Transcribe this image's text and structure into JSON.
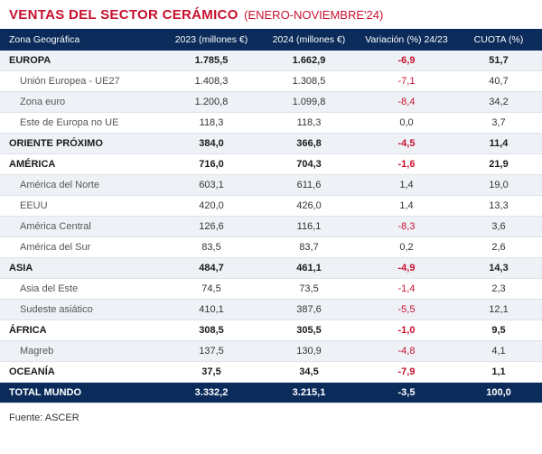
{
  "colors": {
    "title": "#c8102e",
    "header_row_bg": "#0b2b5a",
    "header_row_text": "#ffffff",
    "alt_row_bg": "#eef2f7",
    "row_bg": "#ffffff",
    "negative": "#c8102e",
    "total_row_bg": "#0b2b5a",
    "border": "#dde3ea"
  },
  "title": {
    "main": "VENTAS DEL SECTOR CERÁMICO",
    "sub": "(ENERO-NOVIEMBRE'24)"
  },
  "columns": {
    "geo": "Zona Geográfica",
    "y2023": "2023 (millones €)",
    "y2024": "2024 (millones €)",
    "var": "Variación (%) 24/23",
    "cuota": "CUOTA (%)"
  },
  "rows": [
    {
      "type": "region",
      "label": "EUROPA",
      "y2023": "1.785,5",
      "y2024": "1.662,9",
      "var": "-6,9",
      "var_neg": true,
      "cuota": "51,7"
    },
    {
      "type": "sub",
      "label": "Unión Europea - UE27",
      "y2023": "1.408,3",
      "y2024": "1.308,5",
      "var": "-7,1",
      "var_neg": true,
      "cuota": "40,7"
    },
    {
      "type": "sub",
      "label": "Zona euro",
      "y2023": "1.200,8",
      "y2024": "1.099,8",
      "var": "-8,4",
      "var_neg": true,
      "cuota": "34,2"
    },
    {
      "type": "sub",
      "label": "Este de Europa no UE",
      "y2023": "118,3",
      "y2024": "118,3",
      "var": "0,0",
      "var_neg": false,
      "cuota": "3,7"
    },
    {
      "type": "region",
      "label": "ORIENTE PRÓXIMO",
      "y2023": "384,0",
      "y2024": "366,8",
      "var": "-4,5",
      "var_neg": true,
      "cuota": "11,4"
    },
    {
      "type": "region",
      "label": "AMÉRICA",
      "y2023": "716,0",
      "y2024": "704,3",
      "var": "-1,6",
      "var_neg": true,
      "cuota": "21,9"
    },
    {
      "type": "sub",
      "label": "América del Norte",
      "y2023": "603,1",
      "y2024": "611,6",
      "var": "1,4",
      "var_neg": false,
      "cuota": "19,0"
    },
    {
      "type": "sub",
      "label": "EEUU",
      "y2023": "420,0",
      "y2024": "426,0",
      "var": "1,4",
      "var_neg": false,
      "cuota": "13,3"
    },
    {
      "type": "sub",
      "label": "América Central",
      "y2023": "126,6",
      "y2024": "116,1",
      "var": "-8,3",
      "var_neg": true,
      "cuota": "3,6"
    },
    {
      "type": "sub",
      "label": "América del Sur",
      "y2023": "83,5",
      "y2024": "83,7",
      "var": "0,2",
      "var_neg": false,
      "cuota": "2,6"
    },
    {
      "type": "region",
      "label": "ASIA",
      "y2023": "484,7",
      "y2024": "461,1",
      "var": "-4,9",
      "var_neg": true,
      "cuota": "14,3"
    },
    {
      "type": "sub",
      "label": "Asia del Este",
      "y2023": "74,5",
      "y2024": "73,5",
      "var": "-1,4",
      "var_neg": true,
      "cuota": "2,3"
    },
    {
      "type": "sub",
      "label": "Sudeste asiático",
      "y2023": "410,1",
      "y2024": "387,6",
      "var": "-5,5",
      "var_neg": true,
      "cuota": "12,1"
    },
    {
      "type": "region",
      "label": "ÁFRICA",
      "y2023": "308,5",
      "y2024": "305,5",
      "var": "-1,0",
      "var_neg": true,
      "cuota": "9,5"
    },
    {
      "type": "sub",
      "label": "Magreb",
      "y2023": "137,5",
      "y2024": "130,9",
      "var": "-4,8",
      "var_neg": true,
      "cuota": "4,1"
    },
    {
      "type": "region",
      "label": "OCEANÍA",
      "y2023": "37,5",
      "y2024": "34,5",
      "var": "-7,9",
      "var_neg": true,
      "cuota": "1,1"
    },
    {
      "type": "total",
      "label": "TOTAL MUNDO",
      "y2023": "3.332,2",
      "y2024": "3.215,1",
      "var": "-3,5",
      "var_neg": false,
      "cuota": "100,0"
    }
  ],
  "source": "Fuente: ASCER"
}
